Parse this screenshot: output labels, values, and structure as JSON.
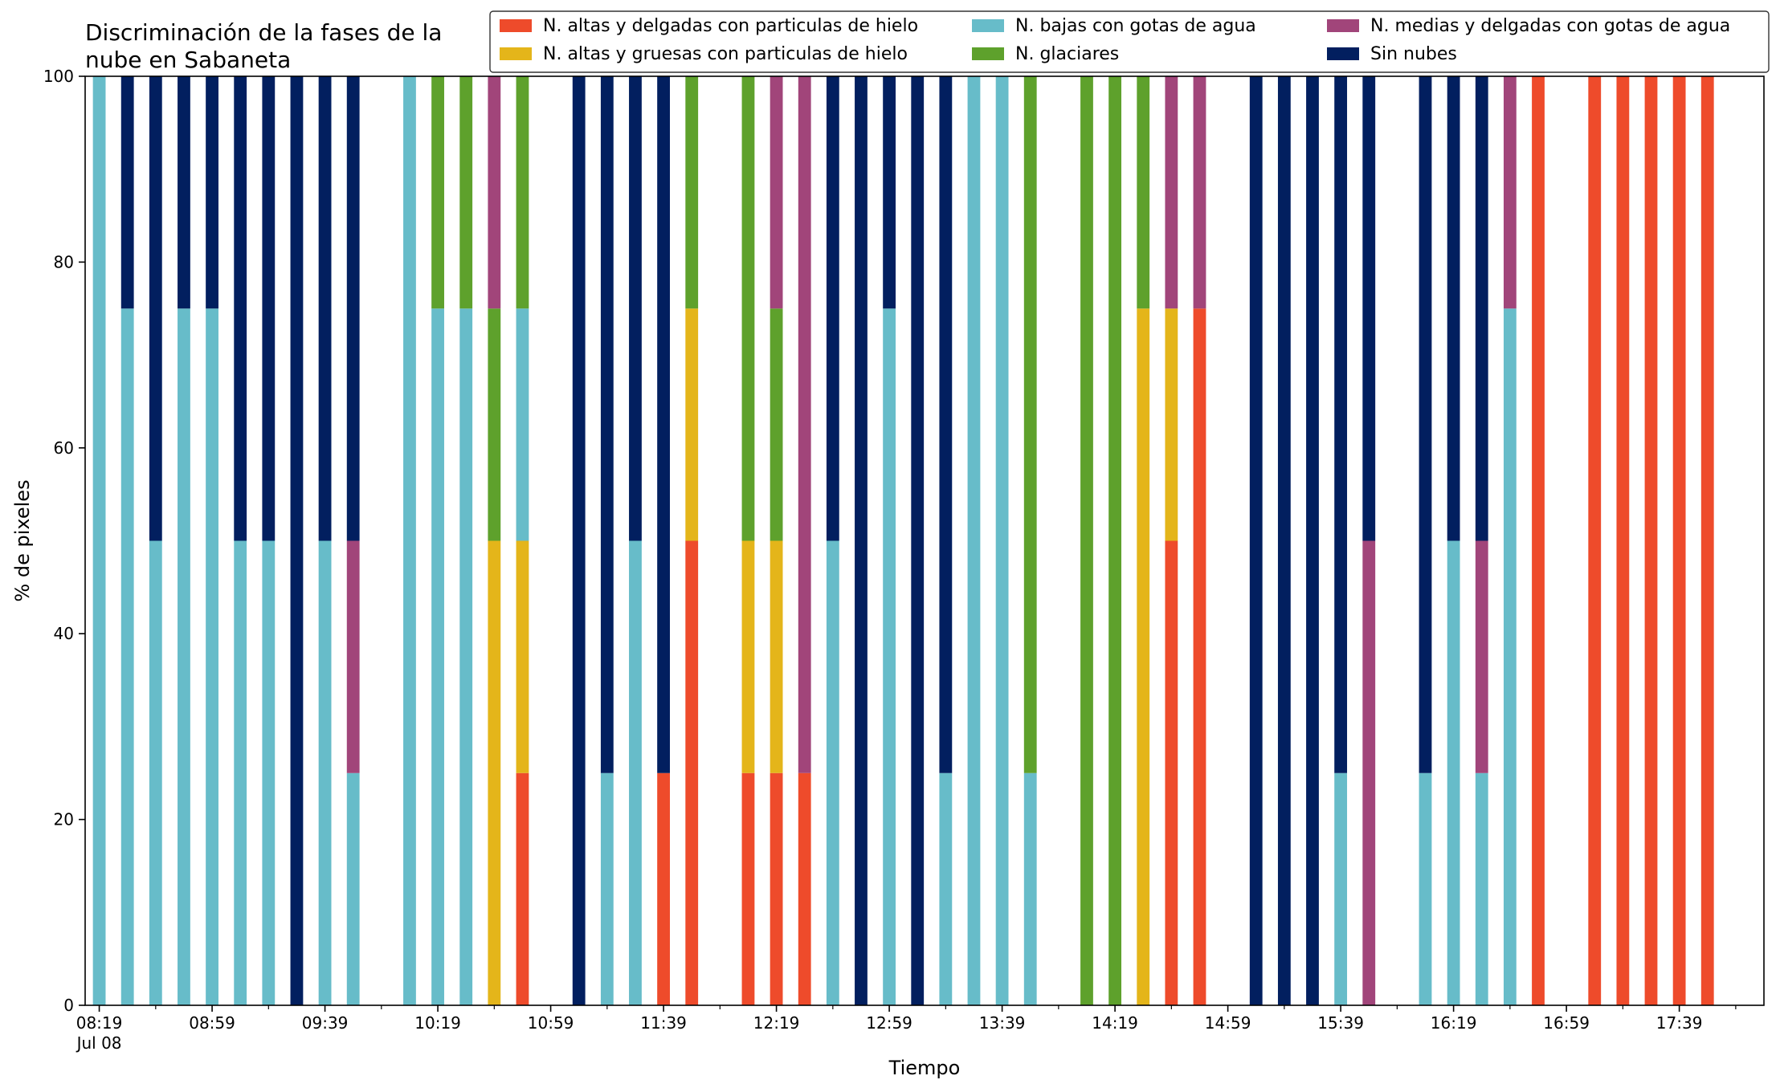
{
  "chart_data": {
    "type": "bar",
    "stacked": true,
    "title_lines": [
      "Discriminación de la fases de la",
      "nube en Sabaneta"
    ],
    "xlabel": "Tiempo",
    "ylabel": "% de pixeles",
    "ylim": [
      0,
      100
    ],
    "yticks": [
      "0",
      "20",
      "40",
      "60",
      "80",
      "100"
    ],
    "xticks": [
      {
        "minute": 0,
        "label": "08:19",
        "sublabel": "Jul 08"
      },
      {
        "minute": 40,
        "label": "08:59"
      },
      {
        "minute": 80,
        "label": "09:39"
      },
      {
        "minute": 120,
        "label": "10:19"
      },
      {
        "minute": 160,
        "label": "10:59"
      },
      {
        "minute": 200,
        "label": "11:39"
      },
      {
        "minute": 240,
        "label": "12:19"
      },
      {
        "minute": 280,
        "label": "12:59"
      },
      {
        "minute": 320,
        "label": "13:39"
      },
      {
        "minute": 360,
        "label": "14:19"
      },
      {
        "minute": 400,
        "label": "14:59"
      },
      {
        "minute": 440,
        "label": "15:39"
      },
      {
        "minute": 480,
        "label": "16:19"
      },
      {
        "minute": 520,
        "label": "16:59"
      },
      {
        "minute": 560,
        "label": "17:39"
      }
    ],
    "x_range_minutes": [
      -5,
      590
    ],
    "legend_position": "top-right",
    "series": [
      {
        "name": "N. altas y delgadas con particulas de hielo",
        "color": "#ee4b2b"
      },
      {
        "name": "N. altas y gruesas con particulas de hielo",
        "color": "#e4b51a"
      },
      {
        "name": "N. bajas con gotas de agua",
        "color": "#67bcc9"
      },
      {
        "name": "N. glaciares",
        "color": "#5ea12c"
      },
      {
        "name": "N. medias y delgadas con gotas de agua",
        "color": "#a1457a"
      },
      {
        "name": "Sin nubes",
        "color": "#021f5f"
      }
    ],
    "bars": [
      {
        "time": "08:19",
        "minute": 0,
        "values": [
          0,
          0,
          100,
          0,
          0,
          0
        ]
      },
      {
        "time": "08:29",
        "minute": 10,
        "values": [
          0,
          0,
          75,
          0,
          0,
          25
        ]
      },
      {
        "time": "08:39",
        "minute": 20,
        "values": [
          0,
          0,
          50,
          0,
          0,
          50
        ]
      },
      {
        "time": "08:49",
        "minute": 30,
        "values": [
          0,
          0,
          75,
          0,
          0,
          25
        ]
      },
      {
        "time": "08:59",
        "minute": 40,
        "values": [
          0,
          0,
          75,
          0,
          0,
          25
        ]
      },
      {
        "time": "09:09",
        "minute": 50,
        "values": [
          0,
          0,
          50,
          0,
          0,
          50
        ]
      },
      {
        "time": "09:19",
        "minute": 60,
        "values": [
          0,
          0,
          50,
          0,
          0,
          50
        ]
      },
      {
        "time": "09:29",
        "minute": 70,
        "values": [
          0,
          0,
          0,
          0,
          0,
          100
        ]
      },
      {
        "time": "09:39",
        "minute": 80,
        "values": [
          0,
          0,
          50,
          0,
          0,
          50
        ]
      },
      {
        "time": "09:49",
        "minute": 90,
        "values": [
          0,
          0,
          25,
          0,
          25,
          50
        ]
      },
      {
        "time": "10:09",
        "minute": 110,
        "values": [
          0,
          0,
          100,
          0,
          0,
          0
        ]
      },
      {
        "time": "10:19",
        "minute": 120,
        "values": [
          0,
          0,
          75,
          25,
          0,
          0
        ]
      },
      {
        "time": "10:29",
        "minute": 130,
        "values": [
          0,
          0,
          75,
          25,
          0,
          0
        ]
      },
      {
        "time": "10:39",
        "minute": 140,
        "values": [
          0,
          50,
          0,
          25,
          25,
          0
        ]
      },
      {
        "time": "10:49",
        "minute": 150,
        "values": [
          25,
          25,
          25,
          25,
          0,
          0
        ]
      },
      {
        "time": "11:09",
        "minute": 170,
        "values": [
          0,
          0,
          0,
          0,
          0,
          100
        ]
      },
      {
        "time": "11:19",
        "minute": 180,
        "values": [
          0,
          0,
          25,
          0,
          0,
          75
        ]
      },
      {
        "time": "11:29",
        "minute": 190,
        "values": [
          0,
          0,
          50,
          0,
          0,
          50
        ]
      },
      {
        "time": "11:39",
        "minute": 200,
        "values": [
          25,
          0,
          0,
          0,
          0,
          75
        ]
      },
      {
        "time": "11:49",
        "minute": 210,
        "values": [
          50,
          25,
          0,
          25,
          0,
          0
        ]
      },
      {
        "time": "12:09",
        "minute": 230,
        "values": [
          25,
          25,
          0,
          50,
          0,
          0
        ]
      },
      {
        "time": "12:19",
        "minute": 240,
        "values": [
          25,
          25,
          0,
          25,
          25,
          0
        ]
      },
      {
        "time": "12:29",
        "minute": 250,
        "values": [
          25,
          0,
          0,
          0,
          75,
          0
        ]
      },
      {
        "time": "12:39",
        "minute": 260,
        "values": [
          0,
          0,
          50,
          0,
          0,
          50
        ]
      },
      {
        "time": "12:49",
        "minute": 270,
        "values": [
          0,
          0,
          0,
          0,
          0,
          100
        ]
      },
      {
        "time": "12:59",
        "minute": 280,
        "values": [
          0,
          0,
          75,
          0,
          0,
          25
        ]
      },
      {
        "time": "13:09",
        "minute": 290,
        "values": [
          0,
          0,
          0,
          0,
          0,
          100
        ]
      },
      {
        "time": "13:19",
        "minute": 300,
        "values": [
          0,
          0,
          25,
          0,
          0,
          75
        ]
      },
      {
        "time": "13:29",
        "minute": 310,
        "values": [
          0,
          0,
          100,
          0,
          0,
          0
        ]
      },
      {
        "time": "13:39",
        "minute": 320,
        "values": [
          0,
          0,
          100,
          0,
          0,
          0
        ]
      },
      {
        "time": "13:49",
        "minute": 330,
        "values": [
          0,
          0,
          25,
          75,
          0,
          0
        ]
      },
      {
        "time": "14:09",
        "minute": 350,
        "values": [
          0,
          0,
          0,
          100,
          0,
          0
        ]
      },
      {
        "time": "14:19",
        "minute": 360,
        "values": [
          0,
          0,
          0,
          100,
          0,
          0
        ]
      },
      {
        "time": "14:29",
        "minute": 370,
        "values": [
          0,
          75,
          0,
          25,
          0,
          0
        ]
      },
      {
        "time": "14:39",
        "minute": 380,
        "values": [
          50,
          25,
          0,
          0,
          25,
          0
        ]
      },
      {
        "time": "14:49",
        "minute": 390,
        "values": [
          75,
          0,
          0,
          0,
          25,
          0
        ]
      },
      {
        "time": "15:09",
        "minute": 410,
        "values": [
          0,
          0,
          0,
          0,
          0,
          100
        ]
      },
      {
        "time": "15:19",
        "minute": 420,
        "values": [
          0,
          0,
          0,
          0,
          0,
          100
        ]
      },
      {
        "time": "15:29",
        "minute": 430,
        "values": [
          0,
          0,
          0,
          0,
          0,
          100
        ]
      },
      {
        "time": "15:39",
        "minute": 440,
        "values": [
          0,
          0,
          25,
          0,
          0,
          75
        ]
      },
      {
        "time": "15:49",
        "minute": 450,
        "values": [
          0,
          0,
          0,
          0,
          50,
          50
        ]
      },
      {
        "time": "16:09",
        "minute": 470,
        "values": [
          0,
          0,
          25,
          0,
          0,
          75
        ]
      },
      {
        "time": "16:19",
        "minute": 480,
        "values": [
          0,
          0,
          50,
          0,
          0,
          50
        ]
      },
      {
        "time": "16:29",
        "minute": 490,
        "values": [
          0,
          0,
          25,
          0,
          25,
          50
        ]
      },
      {
        "time": "16:39",
        "minute": 500,
        "values": [
          0,
          0,
          75,
          0,
          25,
          0
        ]
      },
      {
        "time": "16:49",
        "minute": 510,
        "values": [
          100,
          0,
          0,
          0,
          0,
          0
        ]
      },
      {
        "time": "17:09",
        "minute": 530,
        "values": [
          100,
          0,
          0,
          0,
          0,
          0
        ]
      },
      {
        "time": "17:19",
        "minute": 540,
        "values": [
          100,
          0,
          0,
          0,
          0,
          0
        ]
      },
      {
        "time": "17:29",
        "minute": 550,
        "values": [
          100,
          0,
          0,
          0,
          0,
          0
        ]
      },
      {
        "time": "17:39",
        "minute": 560,
        "values": [
          100,
          0,
          0,
          0,
          0,
          0
        ]
      },
      {
        "time": "17:49",
        "minute": 570,
        "values": [
          100,
          0,
          0,
          0,
          0,
          0
        ]
      }
    ]
  }
}
